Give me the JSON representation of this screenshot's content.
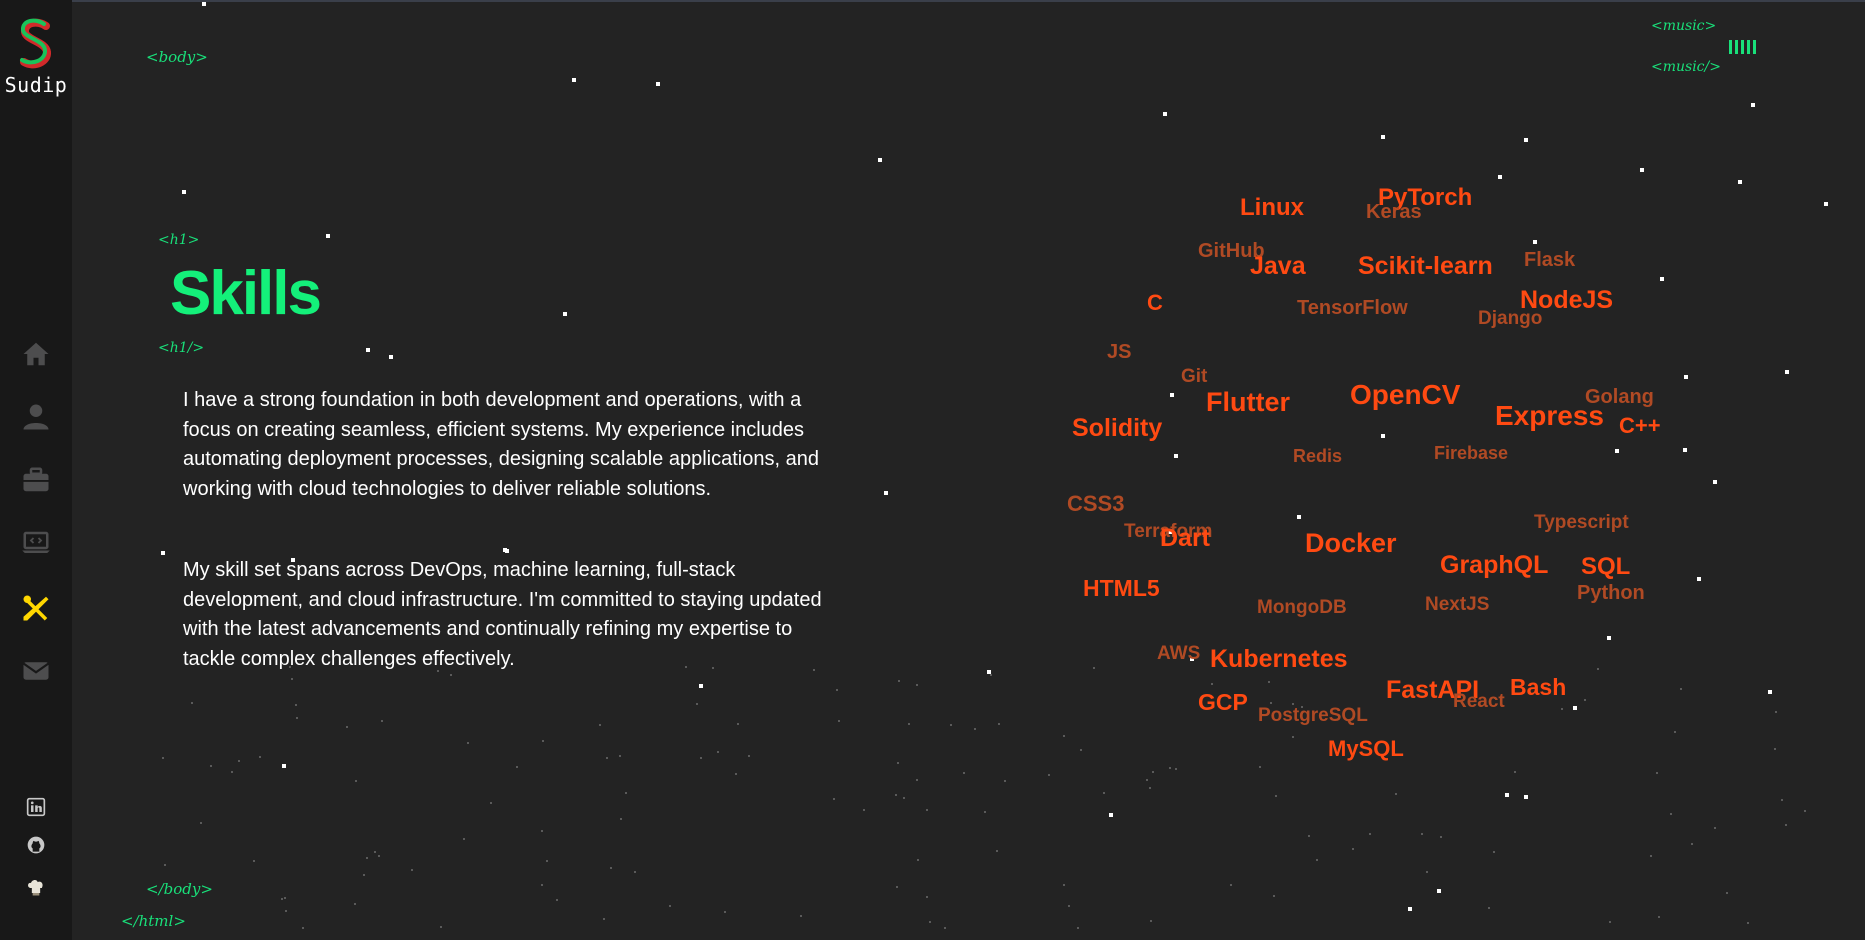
{
  "sidebar": {
    "logo_letter": "S",
    "logo_name": "Sudip",
    "nav": [
      {
        "icon": "home-icon"
      },
      {
        "icon": "user-icon"
      },
      {
        "icon": "briefcase-icon"
      },
      {
        "icon": "laptop-code-icon"
      },
      {
        "icon": "tools-icon",
        "active": true
      },
      {
        "icon": "envelope-icon"
      }
    ],
    "social": [
      {
        "icon": "linkedin-icon"
      },
      {
        "icon": "github-icon"
      },
      {
        "icon": "chef-hat-icon"
      }
    ],
    "colors": {
      "active": "#ffd700",
      "inactive": "#4d4d4e",
      "logo_green": "#19c35a",
      "logo_red": "#d02a2a"
    }
  },
  "tags": {
    "body_open": "<body>",
    "h1_open": "<h1>",
    "h1_close": "<h1/>",
    "body_close": "</body>",
    "html_close": "</html>",
    "music_open": "<music>",
    "music_close": "<music/>"
  },
  "main": {
    "title": "Skills",
    "paragraph1": "I have a strong foundation in both development and operations, with a focus on creating seamless, efficient systems. My experience includes automating deployment processes, designing scalable applications, and working with cloud technologies to deliver reliable solutions.",
    "paragraph2": "My skill set spans across DevOps, machine learning, full-stack development, and cloud infrastructure. I'm committed to staying updated with the latest advancements and continually refining my expertise to tackle complex challenges effectively."
  },
  "colors": {
    "background": "#232323",
    "accent_green": "#14f07a",
    "tag_green": "#19e07a",
    "skill_bright": "#ff4a12",
    "skill_dim": "#b04a24"
  },
  "skills": [
    {
      "label": "Linux",
      "tone": "bright"
    },
    {
      "label": "PyTorch",
      "tone": "bright"
    },
    {
      "label": "Keras",
      "tone": "dim"
    },
    {
      "label": "GitHub",
      "tone": "dim"
    },
    {
      "label": "Java",
      "tone": "bright"
    },
    {
      "label": "Scikit-learn",
      "tone": "bright"
    },
    {
      "label": "Flask",
      "tone": "dim"
    },
    {
      "label": "C",
      "tone": "bright"
    },
    {
      "label": "TensorFlow",
      "tone": "dim"
    },
    {
      "label": "NodeJS",
      "tone": "bright"
    },
    {
      "label": "Django",
      "tone": "dim"
    },
    {
      "label": "JS",
      "tone": "dim"
    },
    {
      "label": "Git",
      "tone": "dim"
    },
    {
      "label": "Flutter",
      "tone": "bright"
    },
    {
      "label": "OpenCV",
      "tone": "bright"
    },
    {
      "label": "Golang",
      "tone": "dim"
    },
    {
      "label": "Express",
      "tone": "bright"
    },
    {
      "label": "C++",
      "tone": "bright"
    },
    {
      "label": "Solidity",
      "tone": "bright"
    },
    {
      "label": "Redis",
      "tone": "dim"
    },
    {
      "label": "Firebase",
      "tone": "dim"
    },
    {
      "label": "CSS3",
      "tone": "dim"
    },
    {
      "label": "Terraform",
      "tone": "dim"
    },
    {
      "label": "Dart",
      "tone": "bright"
    },
    {
      "label": "Docker",
      "tone": "bright"
    },
    {
      "label": "Typescript",
      "tone": "dim"
    },
    {
      "label": "GraphQL",
      "tone": "bright"
    },
    {
      "label": "SQL",
      "tone": "bright"
    },
    {
      "label": "HTML5",
      "tone": "bright"
    },
    {
      "label": "MongoDB",
      "tone": "dim"
    },
    {
      "label": "NextJS",
      "tone": "dim"
    },
    {
      "label": "Python",
      "tone": "dim"
    },
    {
      "label": "AWS",
      "tone": "dim"
    },
    {
      "label": "Kubernetes",
      "tone": "bright"
    },
    {
      "label": "FastAPI",
      "tone": "bright"
    },
    {
      "label": "Bash",
      "tone": "bright"
    },
    {
      "label": "React",
      "tone": "dim"
    },
    {
      "label": "GCP",
      "tone": "bright"
    },
    {
      "label": "PostgreSQL",
      "tone": "dim"
    },
    {
      "label": "MySQL",
      "tone": "bright"
    }
  ]
}
